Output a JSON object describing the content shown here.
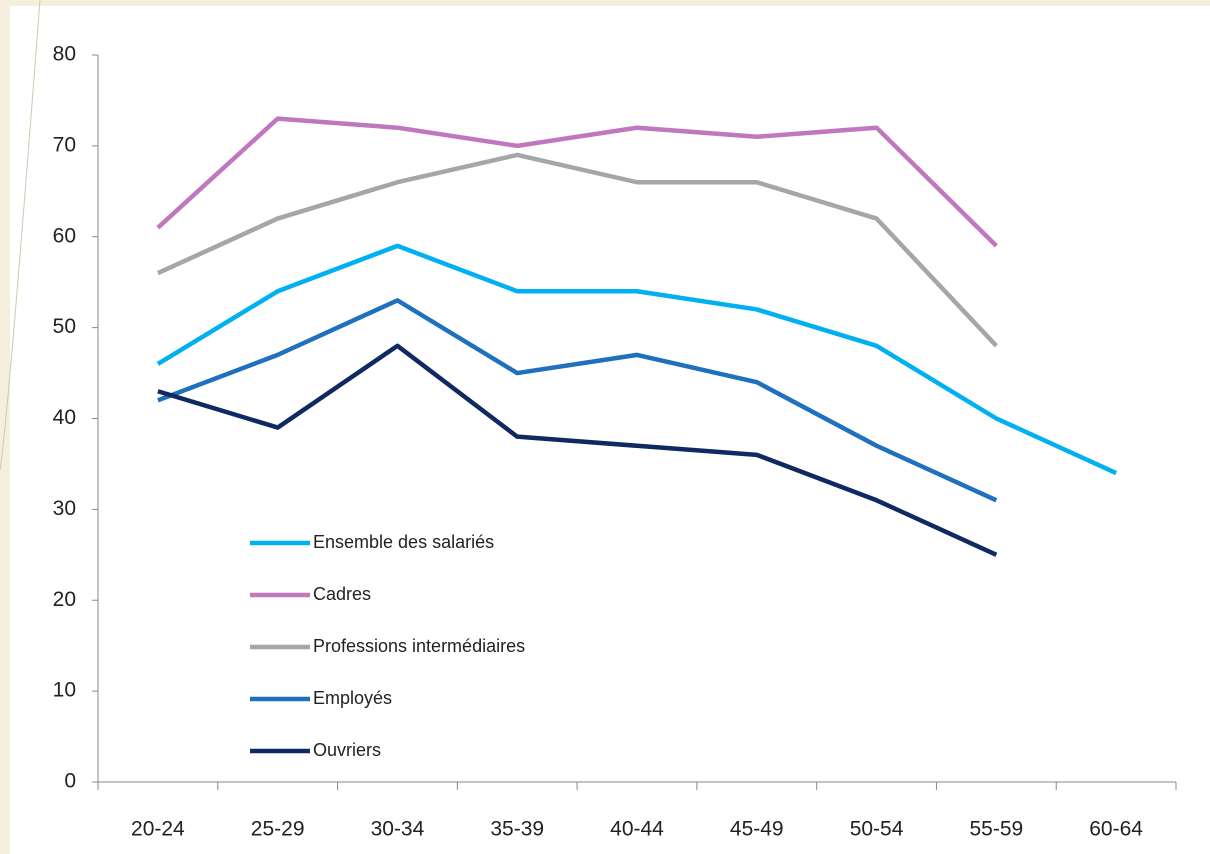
{
  "chart_data": {
    "type": "line",
    "categories": [
      "20-24",
      "25-29",
      "30-34",
      "35-39",
      "40-44",
      "45-49",
      "50-54",
      "55-59",
      "60-64"
    ],
    "series": [
      {
        "name": "Ensemble des salariés",
        "color": "#00b0f0",
        "values": [
          46,
          54,
          59,
          54,
          54,
          52,
          48,
          40,
          34
        ]
      },
      {
        "name": "Cadres",
        "color": "#bf78bd",
        "values": [
          61,
          73,
          72,
          70,
          72,
          71,
          72,
          59,
          null
        ]
      },
      {
        "name": "Professions intermédiaires",
        "color": "#a6a6a6",
        "values": [
          56,
          62,
          66,
          69,
          66,
          66,
          62,
          48,
          null
        ]
      },
      {
        "name": "Employés",
        "color": "#1f70bd",
        "values": [
          42,
          47,
          53,
          45,
          47,
          44,
          37,
          31,
          null
        ]
      },
      {
        "name": "Ouvriers",
        "color": "#0e2a60",
        "values": [
          43,
          39,
          48,
          38,
          37,
          36,
          31,
          25,
          null
        ]
      }
    ],
    "ylim": [
      0,
      80
    ],
    "yticks": [
      0,
      10,
      20,
      30,
      40,
      50,
      60,
      70,
      80
    ],
    "grid": false
  }
}
